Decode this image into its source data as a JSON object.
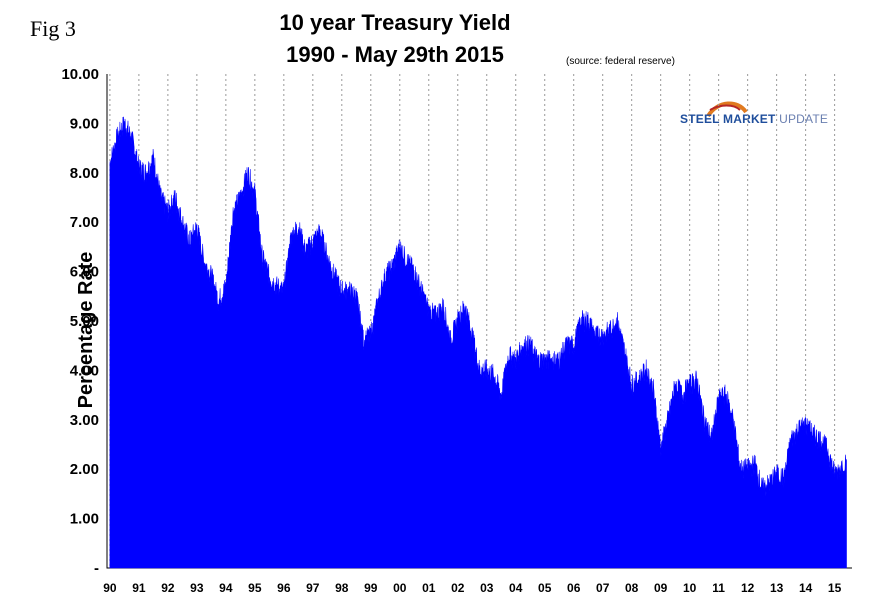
{
  "fig_label": "Fig 3",
  "logo": {
    "word1": "STEEL",
    "word2": "MARKET",
    "word3": "UPDATE"
  },
  "chart_data": {
    "type": "area",
    "title_line1": "10 year Treasury Yield",
    "title_line2": "1990 - May 29th 2015",
    "source": "(source: federal reserve)",
    "ylabel": "Percentage Rate",
    "xlabel": "",
    "ylim": [
      0,
      10
    ],
    "yticks": [
      "-",
      "1.00",
      "2.00",
      "3.00",
      "4.00",
      "5.00",
      "6.00",
      "7.00",
      "8.00",
      "9.00",
      "10.00"
    ],
    "xticks": [
      "90",
      "91",
      "92",
      "93",
      "94",
      "95",
      "96",
      "97",
      "98",
      "99",
      "00",
      "01",
      "02",
      "03",
      "04",
      "05",
      "06",
      "07",
      "08",
      "09",
      "10",
      "11",
      "12",
      "13",
      "14",
      "15"
    ],
    "grid": {
      "vertical": true,
      "horizontal": false,
      "style": "dashed"
    },
    "series_color": "#0000ff",
    "series": [
      {
        "name": "",
        "x": [
          1990.0,
          1990.25,
          1990.5,
          1990.75,
          1991.0,
          1991.25,
          1991.5,
          1991.75,
          1992.0,
          1992.25,
          1992.5,
          1992.75,
          1993.0,
          1993.25,
          1993.5,
          1993.75,
          1994.0,
          1994.25,
          1994.5,
          1994.75,
          1995.0,
          1995.25,
          1995.5,
          1995.75,
          1996.0,
          1996.25,
          1996.5,
          1996.75,
          1997.0,
          1997.25,
          1997.5,
          1997.75,
          1998.0,
          1998.25,
          1998.5,
          1998.75,
          1999.0,
          1999.25,
          1999.5,
          1999.75,
          2000.0,
          2000.25,
          2000.5,
          2000.75,
          2001.0,
          2001.25,
          2001.5,
          2001.75,
          2002.0,
          2002.25,
          2002.5,
          2002.75,
          2003.0,
          2003.25,
          2003.5,
          2003.75,
          2004.0,
          2004.25,
          2004.5,
          2004.75,
          2005.0,
          2005.25,
          2005.5,
          2005.75,
          2006.0,
          2006.25,
          2006.5,
          2006.75,
          2007.0,
          2007.25,
          2007.5,
          2007.75,
          2008.0,
          2008.25,
          2008.5,
          2008.75,
          2009.0,
          2009.25,
          2009.5,
          2009.75,
          2010.0,
          2010.25,
          2010.5,
          2010.75,
          2011.0,
          2011.25,
          2011.5,
          2011.75,
          2012.0,
          2012.25,
          2012.5,
          2012.75,
          2013.0,
          2013.25,
          2013.5,
          2013.75,
          2014.0,
          2014.25,
          2014.5,
          2014.75,
          2015.0,
          2015.41
        ],
        "y": [
          8.2,
          8.7,
          9.0,
          8.7,
          8.1,
          8.0,
          8.3,
          7.5,
          7.2,
          7.5,
          7.0,
          6.6,
          6.9,
          6.2,
          5.9,
          5.4,
          5.7,
          7.2,
          7.5,
          8.0,
          7.6,
          6.3,
          5.9,
          5.7,
          5.6,
          6.7,
          6.9,
          6.4,
          6.6,
          6.8,
          6.3,
          5.9,
          5.6,
          5.6,
          5.5,
          4.6,
          4.7,
          5.4,
          5.9,
          6.1,
          6.5,
          6.2,
          6.0,
          5.6,
          5.2,
          5.1,
          5.3,
          4.6,
          5.0,
          5.3,
          4.7,
          4.0,
          4.0,
          3.9,
          3.5,
          4.3,
          4.2,
          4.5,
          4.5,
          4.2,
          4.2,
          4.2,
          4.2,
          4.5,
          4.5,
          5.0,
          5.0,
          4.7,
          4.7,
          4.8,
          5.0,
          4.4,
          3.7,
          3.8,
          4.0,
          3.6,
          2.4,
          3.0,
          3.7,
          3.5,
          3.7,
          3.8,
          3.0,
          2.6,
          3.4,
          3.5,
          3.0,
          2.0,
          2.0,
          2.1,
          1.6,
          1.7,
          1.9,
          1.8,
          2.6,
          2.8,
          2.9,
          2.7,
          2.6,
          2.4,
          1.9,
          2.2
        ]
      }
    ]
  }
}
